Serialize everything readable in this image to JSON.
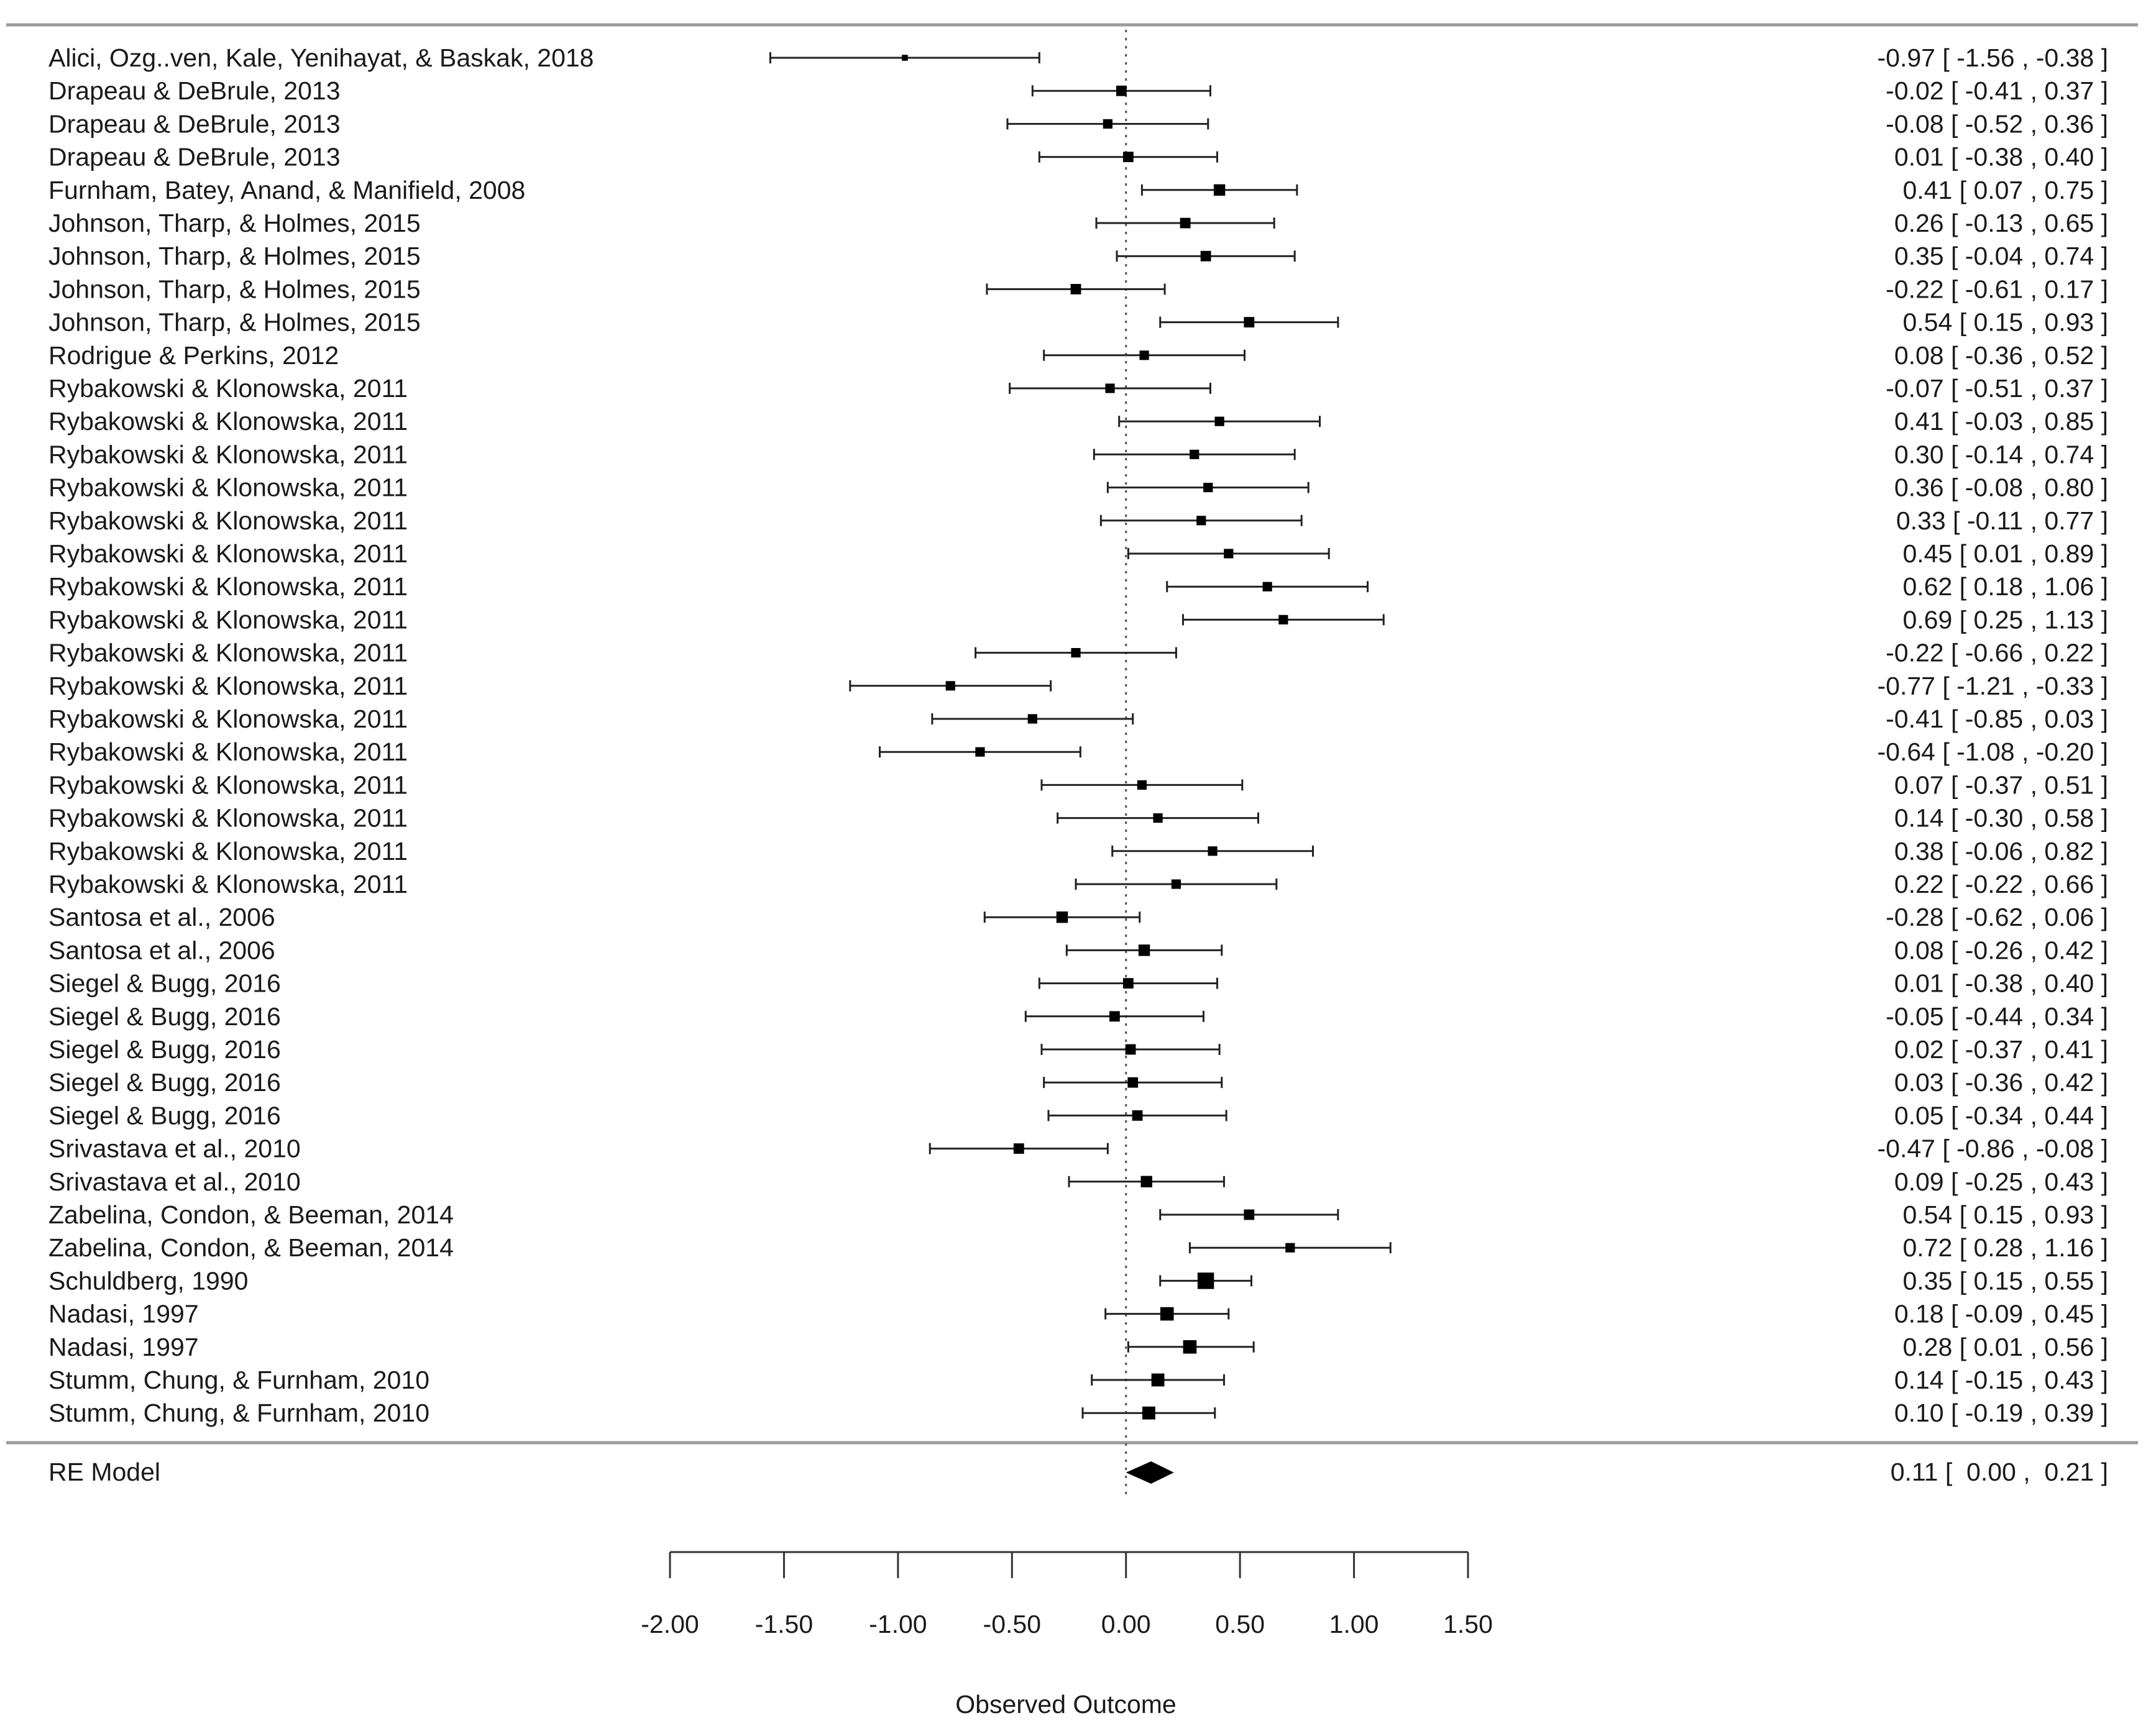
{
  "chart_data": {
    "type": "forest",
    "title": "",
    "xlabel": "Observed Outcome",
    "xlim": [
      -2.0,
      1.5
    ],
    "ticks": [
      -2.0,
      -1.5,
      -1.0,
      -0.5,
      0.0,
      0.5,
      1.0,
      1.5
    ],
    "tick_labels": [
      "-2.00",
      "-1.50",
      "-1.00",
      "-0.50",
      "0.00",
      "0.50",
      "1.00",
      "1.50"
    ],
    "reference_line": 0,
    "studies": [
      {
        "label": "Alici, Ozg..ven, Kale, Yenihayat, & Baskak, 2018",
        "est": -0.97,
        "lo": -1.56,
        "hi": -0.38,
        "ci_text": "-0.97 [ -1.56 , -0.38 ]",
        "weight": 0.35
      },
      {
        "label": "Drapeau & DeBrule, 2013",
        "est": -0.02,
        "lo": -0.41,
        "hi": 0.37,
        "ci_text": "-0.02 [ -0.41 ,  0.37 ]",
        "weight": 0.8
      },
      {
        "label": "Drapeau & DeBrule, 2013",
        "est": -0.08,
        "lo": -0.52,
        "hi": 0.36,
        "ci_text": "-0.08 [ -0.52 ,  0.36 ]",
        "weight": 0.7
      },
      {
        "label": "Drapeau & DeBrule, 2013",
        "est": 0.01,
        "lo": -0.38,
        "hi": 0.4,
        "ci_text": "0.01 [ -0.38 ,  0.40 ]",
        "weight": 0.8
      },
      {
        "label": "Furnham, Batey, Anand, & Manifield, 2008",
        "est": 0.41,
        "lo": 0.07,
        "hi": 0.75,
        "ci_text": "0.41 [  0.07 ,  0.75 ]",
        "weight": 0.9
      },
      {
        "label": "Johnson, Tharp, & Holmes, 2015",
        "est": 0.26,
        "lo": -0.13,
        "hi": 0.65,
        "ci_text": "0.26 [ -0.13 ,  0.65 ]",
        "weight": 0.8
      },
      {
        "label": "Johnson, Tharp, & Holmes, 2015",
        "est": 0.35,
        "lo": -0.04,
        "hi": 0.74,
        "ci_text": "0.35 [ -0.04 ,  0.74 ]",
        "weight": 0.8
      },
      {
        "label": "Johnson, Tharp, & Holmes, 2015",
        "est": -0.22,
        "lo": -0.61,
        "hi": 0.17,
        "ci_text": "-0.22 [ -0.61 ,  0.17 ]",
        "weight": 0.8
      },
      {
        "label": "Johnson, Tharp, & Holmes, 2015",
        "est": 0.54,
        "lo": 0.15,
        "hi": 0.93,
        "ci_text": "0.54 [  0.15 ,  0.93 ]",
        "weight": 0.8
      },
      {
        "label": "Rodrigue & Perkins, 2012",
        "est": 0.08,
        "lo": -0.36,
        "hi": 0.52,
        "ci_text": "0.08 [ -0.36 ,  0.52 ]",
        "weight": 0.7
      },
      {
        "label": "Rybakowski & Klonowska, 2011",
        "est": -0.07,
        "lo": -0.51,
        "hi": 0.37,
        "ci_text": "-0.07 [ -0.51 ,  0.37 ]",
        "weight": 0.7
      },
      {
        "label": "Rybakowski & Klonowska, 2011",
        "est": 0.41,
        "lo": -0.03,
        "hi": 0.85,
        "ci_text": "0.41 [ -0.03 ,  0.85 ]",
        "weight": 0.7
      },
      {
        "label": "Rybakowski & Klonowska, 2011",
        "est": 0.3,
        "lo": -0.14,
        "hi": 0.74,
        "ci_text": "0.30 [ -0.14 ,  0.74 ]",
        "weight": 0.7
      },
      {
        "label": "Rybakowski & Klonowska, 2011",
        "est": 0.36,
        "lo": -0.08,
        "hi": 0.8,
        "ci_text": "0.36 [ -0.08 ,  0.80 ]",
        "weight": 0.7
      },
      {
        "label": "Rybakowski & Klonowska, 2011",
        "est": 0.33,
        "lo": -0.11,
        "hi": 0.77,
        "ci_text": "0.33 [ -0.11 ,  0.77 ]",
        "weight": 0.7
      },
      {
        "label": "Rybakowski & Klonowska, 2011",
        "est": 0.45,
        "lo": 0.01,
        "hi": 0.89,
        "ci_text": "0.45 [  0.01 ,  0.89 ]",
        "weight": 0.7
      },
      {
        "label": "Rybakowski & Klonowska, 2011",
        "est": 0.62,
        "lo": 0.18,
        "hi": 1.06,
        "ci_text": "0.62 [  0.18 ,  1.06 ]",
        "weight": 0.7
      },
      {
        "label": "Rybakowski & Klonowska, 2011",
        "est": 0.69,
        "lo": 0.25,
        "hi": 1.13,
        "ci_text": "0.69 [  0.25 ,  1.13 ]",
        "weight": 0.7
      },
      {
        "label": "Rybakowski & Klonowska, 2011",
        "est": -0.22,
        "lo": -0.66,
        "hi": 0.22,
        "ci_text": "-0.22 [ -0.66 ,  0.22 ]",
        "weight": 0.7
      },
      {
        "label": "Rybakowski & Klonowska, 2011",
        "est": -0.77,
        "lo": -1.21,
        "hi": -0.33,
        "ci_text": "-0.77 [ -1.21 , -0.33 ]",
        "weight": 0.7
      },
      {
        "label": "Rybakowski & Klonowska, 2011",
        "est": -0.41,
        "lo": -0.85,
        "hi": 0.03,
        "ci_text": "-0.41 [ -0.85 ,  0.03 ]",
        "weight": 0.7
      },
      {
        "label": "Rybakowski & Klonowska, 2011",
        "est": -0.64,
        "lo": -1.08,
        "hi": -0.2,
        "ci_text": "-0.64 [ -1.08 , -0.20 ]",
        "weight": 0.7
      },
      {
        "label": "Rybakowski & Klonowska, 2011",
        "est": 0.07,
        "lo": -0.37,
        "hi": 0.51,
        "ci_text": "0.07 [ -0.37 ,  0.51 ]",
        "weight": 0.7
      },
      {
        "label": "Rybakowski & Klonowska, 2011",
        "est": 0.14,
        "lo": -0.3,
        "hi": 0.58,
        "ci_text": "0.14 [ -0.30 ,  0.58 ]",
        "weight": 0.7
      },
      {
        "label": "Rybakowski & Klonowska, 2011",
        "est": 0.38,
        "lo": -0.06,
        "hi": 0.82,
        "ci_text": "0.38 [ -0.06 ,  0.82 ]",
        "weight": 0.7
      },
      {
        "label": "Rybakowski & Klonowska, 2011",
        "est": 0.22,
        "lo": -0.22,
        "hi": 0.66,
        "ci_text": "0.22 [ -0.22 ,  0.66 ]",
        "weight": 0.7
      },
      {
        "label": "Santosa et al., 2006",
        "est": -0.28,
        "lo": -0.62,
        "hi": 0.06,
        "ci_text": "-0.28 [ -0.62 ,  0.06 ]",
        "weight": 0.9
      },
      {
        "label": "Santosa et al., 2006",
        "est": 0.08,
        "lo": -0.26,
        "hi": 0.42,
        "ci_text": "0.08 [ -0.26 ,  0.42 ]",
        "weight": 0.9
      },
      {
        "label": "Siegel & Bugg, 2016",
        "est": 0.01,
        "lo": -0.38,
        "hi": 0.4,
        "ci_text": "0.01 [ -0.38 ,  0.40 ]",
        "weight": 0.8
      },
      {
        "label": "Siegel & Bugg, 2016",
        "est": -0.05,
        "lo": -0.44,
        "hi": 0.34,
        "ci_text": "-0.05 [ -0.44 ,  0.34 ]",
        "weight": 0.8
      },
      {
        "label": "Siegel & Bugg, 2016",
        "est": 0.02,
        "lo": -0.37,
        "hi": 0.41,
        "ci_text": "0.02 [ -0.37 ,  0.41 ]",
        "weight": 0.8
      },
      {
        "label": "Siegel & Bugg, 2016",
        "est": 0.03,
        "lo": -0.36,
        "hi": 0.42,
        "ci_text": "0.03 [ -0.36 ,  0.42 ]",
        "weight": 0.8
      },
      {
        "label": "Siegel & Bugg, 2016",
        "est": 0.05,
        "lo": -0.34,
        "hi": 0.44,
        "ci_text": "0.05 [ -0.34 ,  0.44 ]",
        "weight": 0.8
      },
      {
        "label": "Srivastava et al., 2010",
        "est": -0.47,
        "lo": -0.86,
        "hi": -0.08,
        "ci_text": "-0.47 [ -0.86 , -0.08 ]",
        "weight": 0.8
      },
      {
        "label": "Srivastava et al., 2010",
        "est": 0.09,
        "lo": -0.25,
        "hi": 0.43,
        "ci_text": "0.09 [ -0.25 ,  0.43 ]",
        "weight": 0.9
      },
      {
        "label": "Zabelina, Condon, & Beeman, 2014",
        "est": 0.54,
        "lo": 0.15,
        "hi": 0.93,
        "ci_text": "0.54 [  0.15 ,  0.93 ]",
        "weight": 0.8
      },
      {
        "label": "Zabelina, Condon, & Beeman, 2014",
        "est": 0.72,
        "lo": 0.28,
        "hi": 1.16,
        "ci_text": "0.72 [  0.28 ,  1.16 ]",
        "weight": 0.7
      },
      {
        "label": "Schuldberg, 1990",
        "est": 0.35,
        "lo": 0.15,
        "hi": 0.55,
        "ci_text": "0.35 [  0.15 ,  0.55 ]",
        "weight": 1.4
      },
      {
        "label": "Nadasi, 1997",
        "est": 0.18,
        "lo": -0.09,
        "hi": 0.45,
        "ci_text": "0.18 [ -0.09 ,  0.45 ]",
        "weight": 1.1
      },
      {
        "label": "Nadasi, 1997",
        "est": 0.28,
        "lo": 0.01,
        "hi": 0.56,
        "ci_text": "0.28 [  0.01 ,  0.56 ]",
        "weight": 1.1
      },
      {
        "label": "Stumm, Chung, & Furnham, 2010",
        "est": 0.14,
        "lo": -0.15,
        "hi": 0.43,
        "ci_text": "0.14 [ -0.15 ,  0.43 ]",
        "weight": 1.05
      },
      {
        "label": "Stumm, Chung, & Furnham, 2010",
        "est": 0.1,
        "lo": -0.19,
        "hi": 0.39,
        "ci_text": "0.10 [ -0.19 ,  0.39 ]",
        "weight": 1.05
      }
    ],
    "summary": {
      "label": "RE Model",
      "est": 0.11,
      "lo": 0.0,
      "hi": 0.21,
      "ci_text": "0.11 [  0.00 ,  0.21 ]"
    }
  }
}
